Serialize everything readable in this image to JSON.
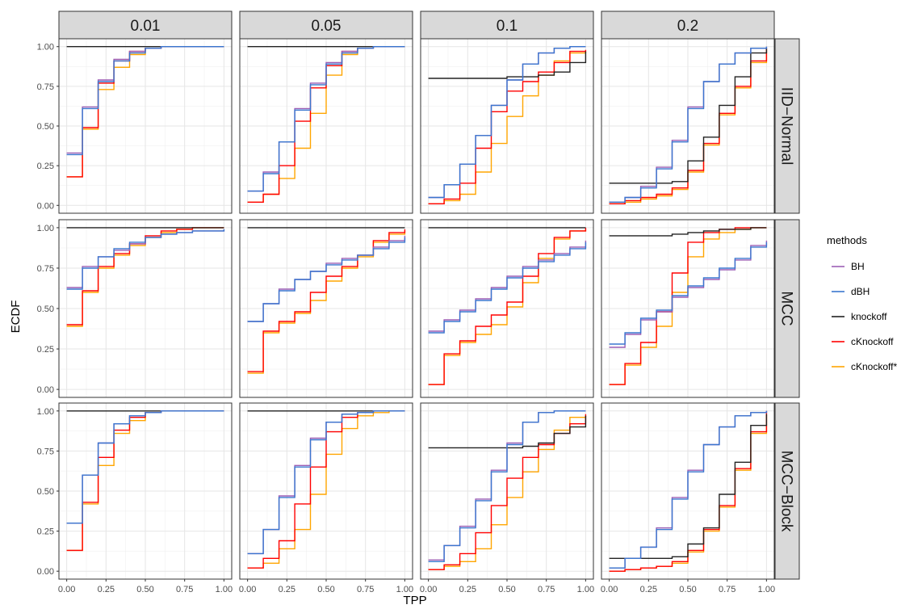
{
  "chart_data": {
    "type": "line",
    "step": true,
    "xlabel": "TPP",
    "ylabel": "ECDF",
    "xlim": [
      0,
      1
    ],
    "ylim": [
      0,
      1
    ],
    "x_ticks": [
      "0.00",
      "0.25",
      "0.50",
      "0.75",
      "1.00"
    ],
    "y_ticks": [
      "0.00",
      "0.25",
      "0.50",
      "0.75",
      "1.00"
    ],
    "grid": true,
    "col_facets": [
      "0.01",
      "0.05",
      "0.1",
      "0.2"
    ],
    "row_facets": [
      "IID−Normal",
      "MCC",
      "MCC−Block"
    ],
    "legend": {
      "title": "methods",
      "position": "right",
      "items": [
        {
          "name": "BH",
          "color": "#9C5FB5"
        },
        {
          "name": "dBH",
          "color": "#3A76CF"
        },
        {
          "name": "knockoff",
          "color": "#222222"
        },
        {
          "name": "cKnockoff",
          "color": "#FF0000"
        },
        {
          "name": "cKnockoff*",
          "color": "#FFA500"
        }
      ]
    },
    "x": [
      0,
      0.1,
      0.2,
      0.3,
      0.4,
      0.5,
      0.6,
      0.7,
      0.8,
      0.9,
      1.0
    ],
    "panels": [
      {
        "row": 0,
        "col": 0,
        "series": {
          "BH": [
            0.33,
            0.62,
            0.79,
            0.92,
            0.97,
            0.99,
            1.0,
            1.0,
            1.0,
            1.0,
            1.0
          ],
          "dBH": [
            0.32,
            0.61,
            0.78,
            0.91,
            0.96,
            0.99,
            1.0,
            1.0,
            1.0,
            1.0,
            1.0
          ],
          "knockoff": [
            1.0,
            1.0,
            1.0,
            1.0,
            1.0,
            1.0,
            1.0,
            1.0,
            1.0,
            1.0,
            1.0
          ],
          "cKnockoff": [
            0.18,
            0.49,
            0.77,
            0.91,
            0.97,
            0.99,
            1.0,
            1.0,
            1.0,
            1.0,
            1.0
          ],
          "cKnockoff*": [
            0.18,
            0.48,
            0.73,
            0.87,
            0.95,
            0.99,
            1.0,
            1.0,
            1.0,
            1.0,
            1.0
          ]
        }
      },
      {
        "row": 0,
        "col": 1,
        "series": {
          "BH": [
            0.09,
            0.21,
            0.4,
            0.61,
            0.77,
            0.9,
            0.97,
            0.99,
            1.0,
            1.0,
            1.0
          ],
          "dBH": [
            0.09,
            0.2,
            0.4,
            0.6,
            0.76,
            0.89,
            0.96,
            0.99,
            1.0,
            1.0,
            1.0
          ],
          "knockoff": [
            1.0,
            1.0,
            1.0,
            1.0,
            1.0,
            1.0,
            1.0,
            1.0,
            1.0,
            1.0,
            1.0
          ],
          "cKnockoff": [
            0.02,
            0.07,
            0.25,
            0.53,
            0.74,
            0.88,
            0.97,
            0.99,
            1.0,
            1.0,
            1.0
          ],
          "cKnockoff*": [
            0.02,
            0.07,
            0.17,
            0.36,
            0.58,
            0.82,
            0.95,
            0.99,
            1.0,
            1.0,
            1.0
          ]
        }
      },
      {
        "row": 0,
        "col": 2,
        "series": {
          "BH": [
            0.05,
            0.13,
            0.26,
            0.44,
            0.63,
            0.79,
            0.89,
            0.96,
            0.99,
            1.0,
            1.0
          ],
          "dBH": [
            0.05,
            0.13,
            0.26,
            0.44,
            0.63,
            0.79,
            0.89,
            0.96,
            0.99,
            1.0,
            1.0
          ],
          "knockoff": [
            0.8,
            0.8,
            0.8,
            0.8,
            0.8,
            0.81,
            0.81,
            0.82,
            0.84,
            0.9,
            0.97
          ],
          "cKnockoff": [
            0.01,
            0.04,
            0.14,
            0.36,
            0.59,
            0.72,
            0.78,
            0.84,
            0.9,
            0.97,
            0.98
          ],
          "cKnockoff*": [
            0.01,
            0.03,
            0.07,
            0.21,
            0.39,
            0.56,
            0.69,
            0.82,
            0.91,
            0.96,
            0.97
          ]
        }
      },
      {
        "row": 0,
        "col": 3,
        "series": {
          "BH": [
            0.02,
            0.05,
            0.12,
            0.24,
            0.41,
            0.62,
            0.78,
            0.89,
            0.96,
            0.99,
            1.0
          ],
          "dBH": [
            0.02,
            0.05,
            0.11,
            0.23,
            0.4,
            0.61,
            0.78,
            0.89,
            0.96,
            0.99,
            1.0
          ],
          "knockoff": [
            0.14,
            0.14,
            0.14,
            0.14,
            0.15,
            0.28,
            0.43,
            0.63,
            0.81,
            0.96,
            0.99
          ],
          "cKnockoff": [
            0.01,
            0.03,
            0.05,
            0.07,
            0.11,
            0.22,
            0.39,
            0.58,
            0.75,
            0.91,
            0.99
          ],
          "cKnockoff*": [
            0.01,
            0.02,
            0.04,
            0.06,
            0.1,
            0.21,
            0.38,
            0.57,
            0.74,
            0.9,
            0.99
          ]
        }
      },
      {
        "row": 1,
        "col": 0,
        "series": {
          "BH": [
            0.63,
            0.76,
            0.82,
            0.86,
            0.9,
            0.94,
            0.96,
            0.97,
            0.98,
            0.98,
            0.99
          ],
          "dBH": [
            0.62,
            0.75,
            0.82,
            0.87,
            0.91,
            0.94,
            0.96,
            0.97,
            0.98,
            0.98,
            0.99
          ],
          "knockoff": [
            1.0,
            1.0,
            1.0,
            1.0,
            1.0,
            1.0,
            1.0,
            1.0,
            1.0,
            1.0,
            1.0
          ],
          "cKnockoff": [
            0.4,
            0.61,
            0.76,
            0.84,
            0.9,
            0.95,
            0.98,
            0.99,
            1.0,
            1.0,
            1.0
          ],
          "cKnockoff*": [
            0.39,
            0.6,
            0.75,
            0.83,
            0.89,
            0.94,
            0.97,
            0.99,
            1.0,
            1.0,
            1.0
          ]
        }
      },
      {
        "row": 1,
        "col": 1,
        "series": {
          "BH": [
            0.42,
            0.53,
            0.62,
            0.68,
            0.73,
            0.78,
            0.81,
            0.83,
            0.88,
            0.92,
            0.95
          ],
          "dBH": [
            0.42,
            0.53,
            0.61,
            0.68,
            0.73,
            0.77,
            0.8,
            0.83,
            0.87,
            0.91,
            0.94
          ],
          "knockoff": [
            1.0,
            1.0,
            1.0,
            1.0,
            1.0,
            1.0,
            1.0,
            1.0,
            1.0,
            1.0,
            1.0
          ],
          "cKnockoff": [
            0.11,
            0.36,
            0.42,
            0.48,
            0.6,
            0.7,
            0.76,
            0.83,
            0.92,
            0.97,
            0.99
          ],
          "cKnockoff*": [
            0.1,
            0.35,
            0.41,
            0.47,
            0.55,
            0.67,
            0.75,
            0.82,
            0.91,
            0.96,
            0.98
          ]
        }
      },
      {
        "row": 1,
        "col": 2,
        "series": {
          "BH": [
            0.36,
            0.43,
            0.49,
            0.56,
            0.63,
            0.7,
            0.76,
            0.8,
            0.84,
            0.88,
            0.92
          ],
          "dBH": [
            0.35,
            0.42,
            0.48,
            0.55,
            0.62,
            0.69,
            0.75,
            0.79,
            0.83,
            0.87,
            0.91
          ],
          "knockoff": [
            1.0,
            1.0,
            1.0,
            1.0,
            1.0,
            1.0,
            1.0,
            1.0,
            1.0,
            1.0,
            1.0
          ],
          "cKnockoff": [
            0.03,
            0.22,
            0.3,
            0.39,
            0.46,
            0.54,
            0.7,
            0.84,
            0.94,
            0.98,
            1.0
          ],
          "cKnockoff*": [
            0.03,
            0.21,
            0.29,
            0.34,
            0.4,
            0.51,
            0.66,
            0.81,
            0.93,
            0.98,
            0.99
          ]
        }
      },
      {
        "row": 1,
        "col": 3,
        "series": {
          "BH": [
            0.26,
            0.34,
            0.43,
            0.48,
            0.57,
            0.63,
            0.68,
            0.74,
            0.8,
            0.89,
            0.92
          ],
          "dBH": [
            0.28,
            0.35,
            0.44,
            0.49,
            0.58,
            0.64,
            0.69,
            0.75,
            0.81,
            0.88,
            0.91
          ],
          "knockoff": [
            0.95,
            0.95,
            0.95,
            0.95,
            0.96,
            0.97,
            0.98,
            0.99,
            0.99,
            1.0,
            1.0
          ],
          "cKnockoff": [
            0.03,
            0.16,
            0.29,
            0.48,
            0.72,
            0.91,
            0.97,
            0.99,
            1.0,
            1.0,
            1.0
          ],
          "cKnockoff*": [
            0.03,
            0.15,
            0.26,
            0.39,
            0.6,
            0.82,
            0.93,
            0.97,
            0.99,
            1.0,
            1.0
          ]
        }
      },
      {
        "row": 2,
        "col": 0,
        "series": {
          "BH": [
            0.3,
            0.6,
            0.8,
            0.92,
            0.97,
            0.99,
            1.0,
            1.0,
            1.0,
            1.0,
            1.0
          ],
          "dBH": [
            0.3,
            0.6,
            0.8,
            0.92,
            0.97,
            0.99,
            1.0,
            1.0,
            1.0,
            1.0,
            1.0
          ],
          "knockoff": [
            1.0,
            1.0,
            1.0,
            1.0,
            1.0,
            1.0,
            1.0,
            1.0,
            1.0,
            1.0,
            1.0
          ],
          "cKnockoff": [
            0.13,
            0.43,
            0.71,
            0.88,
            0.96,
            0.99,
            1.0,
            1.0,
            1.0,
            1.0,
            1.0
          ],
          "cKnockoff*": [
            0.13,
            0.42,
            0.66,
            0.86,
            0.94,
            0.99,
            1.0,
            1.0,
            1.0,
            1.0,
            1.0
          ]
        }
      },
      {
        "row": 2,
        "col": 1,
        "series": {
          "BH": [
            0.11,
            0.26,
            0.47,
            0.66,
            0.83,
            0.93,
            0.98,
            0.99,
            1.0,
            1.0,
            1.0
          ],
          "dBH": [
            0.11,
            0.26,
            0.46,
            0.65,
            0.82,
            0.93,
            0.98,
            0.99,
            1.0,
            1.0,
            1.0
          ],
          "knockoff": [
            1.0,
            1.0,
            1.0,
            1.0,
            1.0,
            1.0,
            1.0,
            1.0,
            1.0,
            1.0,
            1.0
          ],
          "cKnockoff": [
            0.02,
            0.08,
            0.19,
            0.42,
            0.65,
            0.87,
            0.96,
            0.99,
            1.0,
            1.0,
            1.0
          ],
          "cKnockoff*": [
            0.02,
            0.05,
            0.14,
            0.26,
            0.48,
            0.73,
            0.89,
            0.97,
            0.99,
            1.0,
            1.0
          ]
        }
      },
      {
        "row": 2,
        "col": 2,
        "series": {
          "BH": [
            0.07,
            0.16,
            0.28,
            0.45,
            0.63,
            0.8,
            0.93,
            0.99,
            1.0,
            1.0,
            1.0
          ],
          "dBH": [
            0.06,
            0.16,
            0.27,
            0.44,
            0.62,
            0.79,
            0.93,
            0.99,
            1.0,
            1.0,
            1.0
          ],
          "knockoff": [
            0.77,
            0.77,
            0.77,
            0.77,
            0.77,
            0.77,
            0.78,
            0.8,
            0.86,
            0.9,
            0.97
          ],
          "cKnockoff": [
            0.01,
            0.04,
            0.11,
            0.24,
            0.41,
            0.58,
            0.71,
            0.79,
            0.86,
            0.92,
            0.98
          ],
          "cKnockoff*": [
            0.01,
            0.03,
            0.06,
            0.14,
            0.29,
            0.46,
            0.62,
            0.76,
            0.88,
            0.96,
            0.97
          ]
        }
      },
      {
        "row": 2,
        "col": 3,
        "series": {
          "BH": [
            0.02,
            0.08,
            0.15,
            0.27,
            0.46,
            0.63,
            0.79,
            0.9,
            0.97,
            0.99,
            1.0
          ],
          "dBH": [
            0.02,
            0.08,
            0.15,
            0.26,
            0.45,
            0.62,
            0.79,
            0.9,
            0.97,
            0.99,
            1.0
          ],
          "knockoff": [
            0.08,
            0.08,
            0.08,
            0.08,
            0.09,
            0.17,
            0.27,
            0.48,
            0.68,
            0.91,
            0.98
          ],
          "cKnockoff": [
            0.0,
            0.01,
            0.02,
            0.03,
            0.06,
            0.13,
            0.26,
            0.41,
            0.64,
            0.87,
            1.0
          ],
          "cKnockoff*": [
            0.0,
            0.01,
            0.02,
            0.03,
            0.05,
            0.12,
            0.25,
            0.4,
            0.63,
            0.86,
            0.98
          ]
        }
      }
    ]
  }
}
